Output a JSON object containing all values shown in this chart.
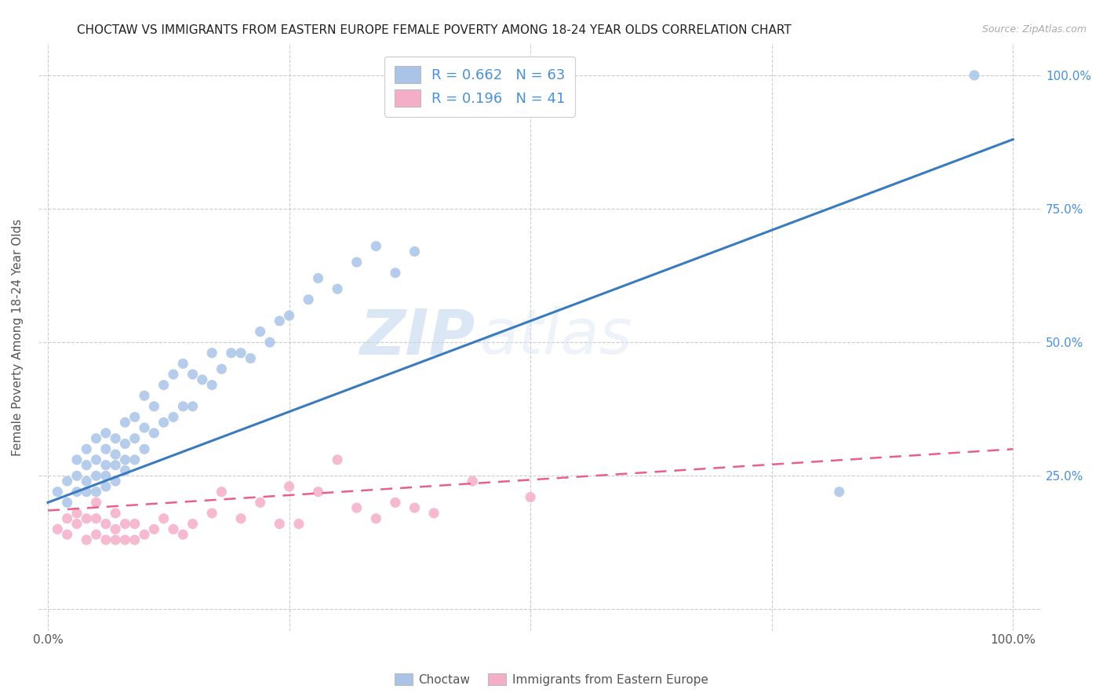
{
  "title": "CHOCTAW VS IMMIGRANTS FROM EASTERN EUROPE FEMALE POVERTY AMONG 18-24 YEAR OLDS CORRELATION CHART",
  "source": "Source: ZipAtlas.com",
  "ylabel": "Female Poverty Among 18-24 Year Olds",
  "background_color": "#ffffff",
  "watermark_zip": "ZIP",
  "watermark_atlas": "atlas",
  "blue_color": "#aac4e8",
  "blue_line_color": "#3a7abf",
  "pink_color": "#f5aec8",
  "pink_line_color": "#e8608a",
  "right_axis_color": "#4a90d9",
  "blue_R": 0.662,
  "blue_N": 63,
  "pink_R": 0.196,
  "pink_N": 41,
  "blue_line_x0": 0.0,
  "blue_line_y0": 0.2,
  "blue_line_x1": 1.0,
  "blue_line_y1": 0.88,
  "pink_line_x0": 0.0,
  "pink_line_y0": 0.185,
  "pink_line_x1": 1.0,
  "pink_line_y1": 0.3,
  "blue_scatter_x": [
    0.01,
    0.02,
    0.02,
    0.03,
    0.03,
    0.03,
    0.04,
    0.04,
    0.04,
    0.04,
    0.05,
    0.05,
    0.05,
    0.05,
    0.06,
    0.06,
    0.06,
    0.06,
    0.06,
    0.07,
    0.07,
    0.07,
    0.07,
    0.08,
    0.08,
    0.08,
    0.08,
    0.09,
    0.09,
    0.09,
    0.1,
    0.1,
    0.1,
    0.11,
    0.11,
    0.12,
    0.12,
    0.13,
    0.13,
    0.14,
    0.14,
    0.15,
    0.15,
    0.16,
    0.17,
    0.17,
    0.18,
    0.19,
    0.2,
    0.21,
    0.22,
    0.23,
    0.24,
    0.25,
    0.27,
    0.28,
    0.3,
    0.32,
    0.34,
    0.36,
    0.38,
    0.82,
    0.96
  ],
  "blue_scatter_y": [
    0.22,
    0.2,
    0.24,
    0.22,
    0.25,
    0.28,
    0.22,
    0.24,
    0.27,
    0.3,
    0.22,
    0.25,
    0.28,
    0.32,
    0.23,
    0.25,
    0.27,
    0.3,
    0.33,
    0.24,
    0.27,
    0.29,
    0.32,
    0.26,
    0.28,
    0.31,
    0.35,
    0.28,
    0.32,
    0.36,
    0.3,
    0.34,
    0.4,
    0.33,
    0.38,
    0.35,
    0.42,
    0.36,
    0.44,
    0.38,
    0.46,
    0.38,
    0.44,
    0.43,
    0.42,
    0.48,
    0.45,
    0.48,
    0.48,
    0.47,
    0.52,
    0.5,
    0.54,
    0.55,
    0.58,
    0.62,
    0.6,
    0.65,
    0.68,
    0.63,
    0.67,
    0.22,
    1.0
  ],
  "pink_scatter_x": [
    0.01,
    0.02,
    0.02,
    0.03,
    0.03,
    0.04,
    0.04,
    0.05,
    0.05,
    0.05,
    0.06,
    0.06,
    0.07,
    0.07,
    0.07,
    0.08,
    0.08,
    0.09,
    0.09,
    0.1,
    0.11,
    0.12,
    0.13,
    0.14,
    0.15,
    0.17,
    0.18,
    0.2,
    0.22,
    0.24,
    0.25,
    0.26,
    0.28,
    0.3,
    0.32,
    0.34,
    0.36,
    0.38,
    0.4,
    0.44,
    0.5
  ],
  "pink_scatter_y": [
    0.15,
    0.14,
    0.17,
    0.16,
    0.18,
    0.13,
    0.17,
    0.14,
    0.17,
    0.2,
    0.13,
    0.16,
    0.13,
    0.15,
    0.18,
    0.13,
    0.16,
    0.13,
    0.16,
    0.14,
    0.15,
    0.17,
    0.15,
    0.14,
    0.16,
    0.18,
    0.22,
    0.17,
    0.2,
    0.16,
    0.23,
    0.16,
    0.22,
    0.28,
    0.19,
    0.17,
    0.2,
    0.19,
    0.18,
    0.24,
    0.21
  ],
  "legend_items": [
    "Choctaw",
    "Immigrants from Eastern Europe"
  ],
  "xlim": [
    -0.01,
    1.03
  ],
  "ylim": [
    -0.04,
    1.06
  ]
}
